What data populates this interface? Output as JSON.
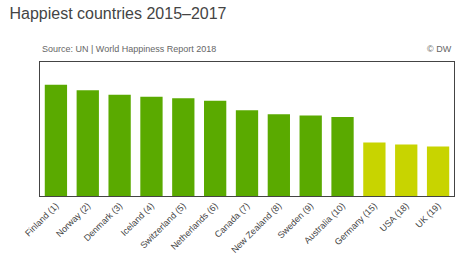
{
  "chart_data": {
    "type": "bar",
    "title": "Happiest countries 2015–2017",
    "annotations": [
      "Source: UN | World Happiness Report 2018",
      "© DW"
    ],
    "categories": [
      "Finland (1)",
      "Norway (2)",
      "Denmark (3)",
      "Iceland (4)",
      "Switzerland (5)",
      "Netherlands (6)",
      "Canada (7)",
      "New Zealand (8)",
      "Sweden (9)",
      "Australia (10)",
      "Germany (15)",
      "USA (18)",
      "UK (19)"
    ],
    "values": [
      7.63,
      7.59,
      7.555,
      7.54,
      7.53,
      7.51,
      7.44,
      7.41,
      7.4,
      7.39,
      7.2,
      7.185,
      7.17
    ],
    "colors": [
      "#5aaa00",
      "#5aaa00",
      "#5aaa00",
      "#5aaa00",
      "#5aaa00",
      "#5aaa00",
      "#5aaa00",
      "#5aaa00",
      "#5aaa00",
      "#5aaa00",
      "#c8d400",
      "#c8d400",
      "#c8d400"
    ],
    "ylim": [
      6.8,
      7.8
    ],
    "grid": false,
    "tick_labels": "x"
  }
}
